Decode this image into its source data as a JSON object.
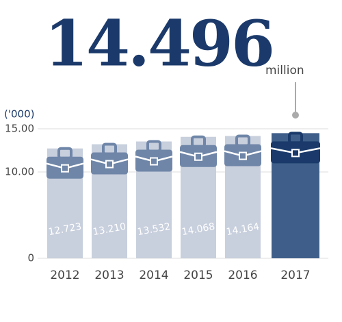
{
  "chart_data": {
    "type": "bar",
    "unit_label": "million",
    "y_axis_label": "('000)",
    "categories": [
      "2012",
      "2013",
      "2014",
      "2015",
      "2016",
      "2017"
    ],
    "values": [
      12.723,
      13.21,
      13.532,
      14.068,
      14.164,
      14.496
    ],
    "value_labels": [
      "12.723",
      "13.210",
      "13.532",
      "14.068",
      "14.164",
      "14.496"
    ],
    "colors": [
      "#c8cfdd",
      "#c8cfdd",
      "#c8cfdd",
      "#c8cfdd",
      "#c8cfdd",
      "#3f5f8a"
    ],
    "icon_colors": [
      "#6f86a8",
      "#6f86a8",
      "#6f86a8",
      "#6f86a8",
      "#6f86a8",
      "#1b3a6b"
    ],
    "ylim": [
      0,
      15
    ],
    "yticks": [
      0,
      {
        "value": 10,
        "label": "10.00"
      },
      {
        "value": 15,
        "label": "15.00"
      }
    ],
    "grid": true
  }
}
